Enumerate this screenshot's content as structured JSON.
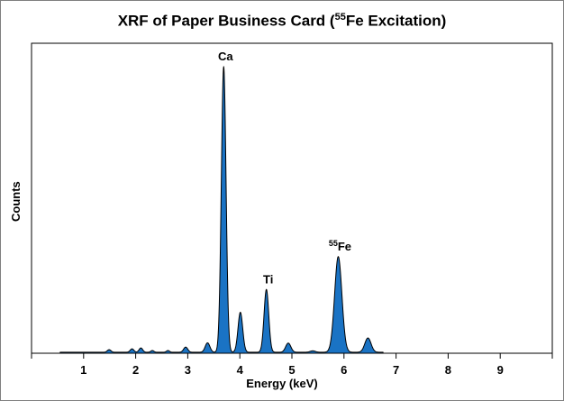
{
  "chart_data": {
    "type": "area",
    "title_parts": {
      "prefix": "XRF of Paper Business Card (",
      "sup": "55",
      "suffix": "Fe Excitation)"
    },
    "title": "XRF of Paper Business Card (55Fe Excitation)",
    "xlabel": "Energy (keV)",
    "ylabel": "Counts",
    "xlim": [
      0,
      10
    ],
    "ylim": [
      0,
      100
    ],
    "xticks": [
      1,
      2,
      3,
      4,
      5,
      6,
      7,
      8,
      9
    ],
    "grid": false,
    "series": [
      {
        "color": "#1a73c4",
        "peaks": [
          {
            "x": 1.49,
            "y": 0.9,
            "w": 0.035
          },
          {
            "x": 1.93,
            "y": 1.2,
            "w": 0.035
          },
          {
            "x": 2.1,
            "y": 1.5,
            "w": 0.035
          },
          {
            "x": 2.32,
            "y": 0.6,
            "w": 0.03
          },
          {
            "x": 2.62,
            "y": 0.6,
            "w": 0.03
          },
          {
            "x": 2.96,
            "y": 1.8,
            "w": 0.04
          },
          {
            "x": 3.38,
            "y": 3.3,
            "w": 0.045
          },
          {
            "x": 3.69,
            "y": 100,
            "w": 0.045
          },
          {
            "x": 4.01,
            "y": 14,
            "w": 0.045
          },
          {
            "x": 4.51,
            "y": 22,
            "w": 0.045
          },
          {
            "x": 4.93,
            "y": 3.2,
            "w": 0.05
          },
          {
            "x": 5.4,
            "y": 0.5,
            "w": 0.05
          },
          {
            "x": 5.89,
            "y": 33.5,
            "w": 0.07
          },
          {
            "x": 6.46,
            "y": 5.0,
            "w": 0.06
          }
        ],
        "baseline": 0.35,
        "x_start": 0.55,
        "x_end": 6.75
      }
    ],
    "annotations": [
      {
        "id": "ca",
        "text": "Ca",
        "sup": "",
        "x": 3.69,
        "y": 100
      },
      {
        "id": "ti",
        "text": "Ti",
        "sup": "",
        "x": 4.51,
        "y": 22
      },
      {
        "id": "fe",
        "text": "Fe",
        "sup": "55",
        "x": 5.89,
        "y": 33.5
      }
    ]
  }
}
